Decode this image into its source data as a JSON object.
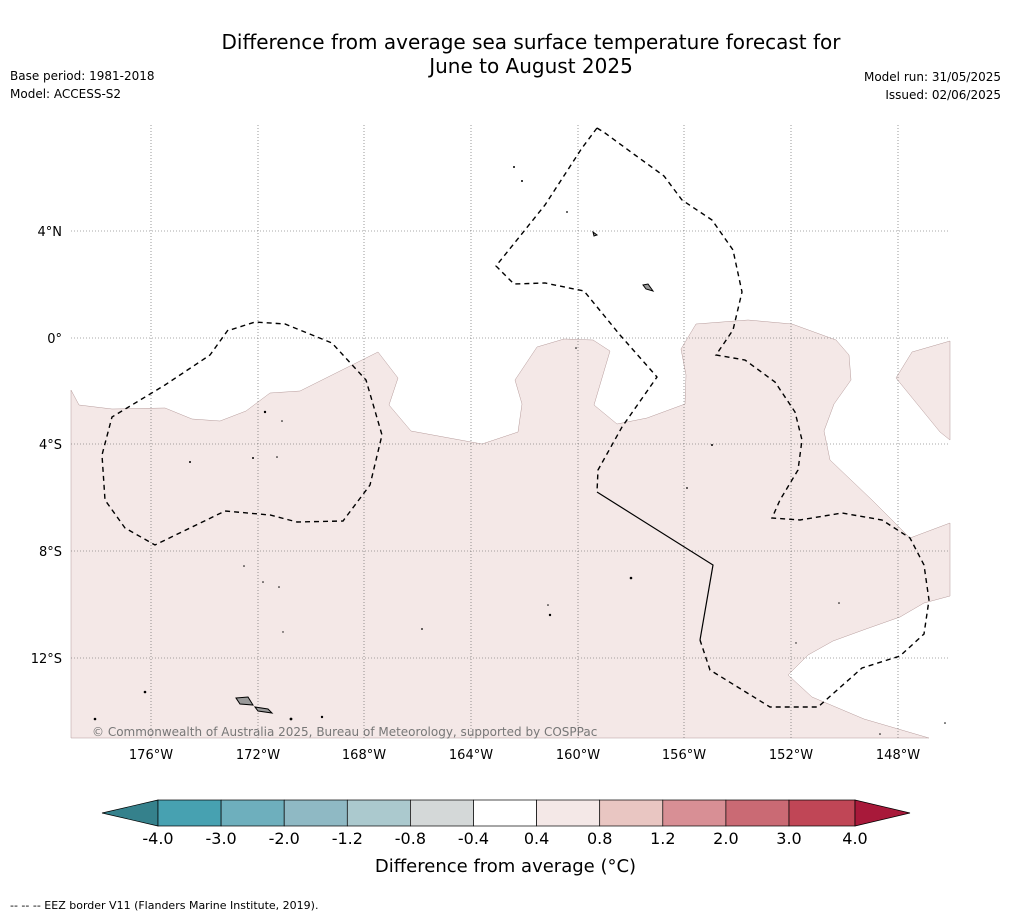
{
  "title": {
    "line1": "Difference from average sea surface temperature forecast for",
    "line2": "June to August 2025"
  },
  "meta_left": {
    "base_period": "Base period: 1981-2018",
    "model": "Model: ACCESS-S2"
  },
  "meta_right": {
    "model_run": "Model run: 31/05/2025",
    "issued": "Issued: 02/06/2025"
  },
  "map": {
    "lon_labels": [
      "176°W",
      "172°W",
      "168°W",
      "164°W",
      "160°W",
      "156°W",
      "152°W",
      "148°W"
    ],
    "lat_labels": [
      "4°N",
      "0°",
      "4°S",
      "8°S",
      "12°S"
    ],
    "copyright": "© Commonwealth of Australia 2025, Bureau of Meteorology, supported by COSPPac",
    "fill_color": "#f4e8e7"
  },
  "colorbar": {
    "ticks": [
      "-4.0",
      "-3.0",
      "-2.0",
      "-1.2",
      "-0.8",
      "-0.4",
      "0.4",
      "0.8",
      "1.2",
      "2.0",
      "3.0",
      "4.0"
    ],
    "colors": [
      "#35818c",
      "#47a1b1",
      "#6eafbd",
      "#8fb9c4",
      "#abc9ce",
      "#d4d8d8",
      "#ffffff",
      "#f4e8e7",
      "#e9c6c2",
      "#d88f95",
      "#ca6a74",
      "#c04656",
      "#a8193a"
    ],
    "label": "Difference from average (°C)"
  },
  "footnote": "--  --  -- EEZ border V11 (Flanders Marine Institute, 2019)."
}
